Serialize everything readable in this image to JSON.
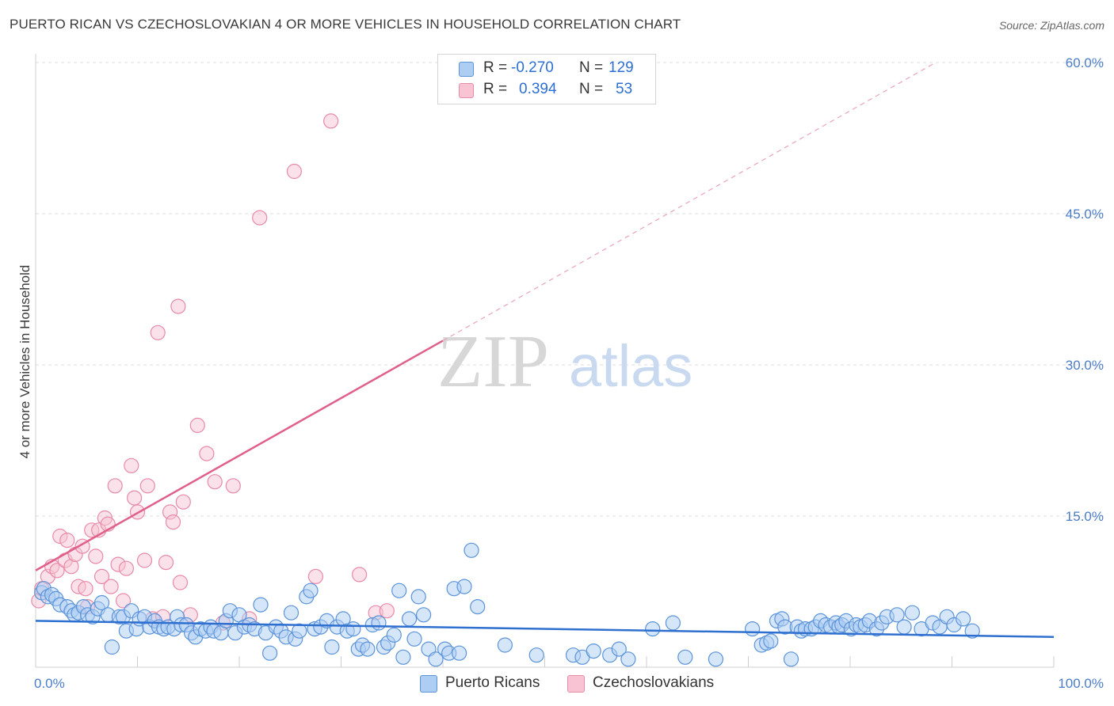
{
  "title": "PUERTO RICAN VS CZECHOSLOVAKIAN 4 OR MORE VEHICLES IN HOUSEHOLD CORRELATION CHART",
  "source": "Source: ZipAtlas.com",
  "watermark": {
    "zip": "ZIP",
    "atlas": "atlas"
  },
  "legend": {
    "r_label": "R =",
    "n_label": "N =",
    "series": [
      {
        "name": "Puerto Ricans",
        "r": "-0.270",
        "n": "129",
        "fill": "#aecdf3",
        "stroke": "#5b93d9"
      },
      {
        "name": "Czechoslovakians",
        "r": "0.394",
        "n": "53",
        "fill": "#f8c3d3",
        "stroke": "#e88aa8"
      }
    ]
  },
  "colors": {
    "blue_line": "#2e6fd0",
    "pink_line": "#e0608a",
    "tick_text": "#4a7cc9",
    "grid": "#dddddd"
  },
  "chart_data": {
    "type": "scatter",
    "title": "PUERTO RICAN VS CZECHOSLOVAKIAN 4 OR MORE VEHICLES IN HOUSEHOLD CORRELATION CHART",
    "xlabel": "",
    "ylabel": "4 or more Vehicles in Household",
    "xlim": [
      0,
      100
    ],
    "ylim": [
      0,
      60
    ],
    "x_tick_labels": [
      {
        "v": 0,
        "t": "0.0%"
      },
      {
        "v": 100,
        "t": "100.0%"
      }
    ],
    "y_tick_labels": [
      {
        "v": 15,
        "t": "15.0%"
      },
      {
        "v": 30,
        "t": "30.0%"
      },
      {
        "v": 45,
        "t": "45.0%"
      },
      {
        "v": 60,
        "t": "60.0%"
      }
    ],
    "series": [
      {
        "name": "Puerto Ricans",
        "trend": {
          "x0": 0,
          "y0": 4.6,
          "x1": 100,
          "y1": 3.0
        },
        "points": [
          [
            0.6,
            7.4
          ],
          [
            0.8,
            7.8
          ],
          [
            1.2,
            7.0
          ],
          [
            1.6,
            7.2
          ],
          [
            2.0,
            6.8
          ],
          [
            2.4,
            6.2
          ],
          [
            3.1,
            6.0
          ],
          [
            3.5,
            5.6
          ],
          [
            3.8,
            5.2
          ],
          [
            4.2,
            5.4
          ],
          [
            4.7,
            6.0
          ],
          [
            5.1,
            5.2
          ],
          [
            5.6,
            5.0
          ],
          [
            6.1,
            5.8
          ],
          [
            6.5,
            6.4
          ],
          [
            7.1,
            5.2
          ],
          [
            7.5,
            2.0
          ],
          [
            8.2,
            5.0
          ],
          [
            8.6,
            5.0
          ],
          [
            8.9,
            3.6
          ],
          [
            9.4,
            5.6
          ],
          [
            9.9,
            3.8
          ],
          [
            10.2,
            4.8
          ],
          [
            10.7,
            5.0
          ],
          [
            11.2,
            4.0
          ],
          [
            11.7,
            4.6
          ],
          [
            12.1,
            4.0
          ],
          [
            12.6,
            3.8
          ],
          [
            13.0,
            4.0
          ],
          [
            13.6,
            3.8
          ],
          [
            13.9,
            5.0
          ],
          [
            14.3,
            4.2
          ],
          [
            14.8,
            4.2
          ],
          [
            15.3,
            3.4
          ],
          [
            15.7,
            3.0
          ],
          [
            16.2,
            3.8
          ],
          [
            16.7,
            3.6
          ],
          [
            17.2,
            4.0
          ],
          [
            17.5,
            3.6
          ],
          [
            18.2,
            3.4
          ],
          [
            18.7,
            4.6
          ],
          [
            19.1,
            5.6
          ],
          [
            19.6,
            3.4
          ],
          [
            20.0,
            5.2
          ],
          [
            20.5,
            4.0
          ],
          [
            21.0,
            4.2
          ],
          [
            21.5,
            3.8
          ],
          [
            22.1,
            6.2
          ],
          [
            22.6,
            3.4
          ],
          [
            23.0,
            1.4
          ],
          [
            23.6,
            4.0
          ],
          [
            24.1,
            3.6
          ],
          [
            24.6,
            3.0
          ],
          [
            25.1,
            5.4
          ],
          [
            25.5,
            2.8
          ],
          [
            25.9,
            3.6
          ],
          [
            26.6,
            7.0
          ],
          [
            27.0,
            7.6
          ],
          [
            27.4,
            3.8
          ],
          [
            28.0,
            4.0
          ],
          [
            28.6,
            4.6
          ],
          [
            29.1,
            2.0
          ],
          [
            29.6,
            4.0
          ],
          [
            30.2,
            4.8
          ],
          [
            30.6,
            3.6
          ],
          [
            31.2,
            3.8
          ],
          [
            31.7,
            1.8
          ],
          [
            32.1,
            2.2
          ],
          [
            32.6,
            1.8
          ],
          [
            33.1,
            4.2
          ],
          [
            33.7,
            4.4
          ],
          [
            34.2,
            2.0
          ],
          [
            34.6,
            2.4
          ],
          [
            35.2,
            3.2
          ],
          [
            35.7,
            7.6
          ],
          [
            36.1,
            1.0
          ],
          [
            36.7,
            4.8
          ],
          [
            37.2,
            2.8
          ],
          [
            37.6,
            7.0
          ],
          [
            38.1,
            5.2
          ],
          [
            38.6,
            1.8
          ],
          [
            39.3,
            0.8
          ],
          [
            40.2,
            1.8
          ],
          [
            40.6,
            1.4
          ],
          [
            41.1,
            7.8
          ],
          [
            41.6,
            1.4
          ],
          [
            42.1,
            8.0
          ],
          [
            42.8,
            11.6
          ],
          [
            43.4,
            6.0
          ],
          [
            46.1,
            2.2
          ],
          [
            49.2,
            1.2
          ],
          [
            52.8,
            1.2
          ],
          [
            53.7,
            1.0
          ],
          [
            54.8,
            1.6
          ],
          [
            56.4,
            1.2
          ],
          [
            57.3,
            1.8
          ],
          [
            58.2,
            0.8
          ],
          [
            60.6,
            3.8
          ],
          [
            62.6,
            4.4
          ],
          [
            63.8,
            1.0
          ],
          [
            66.8,
            0.8
          ],
          [
            70.4,
            3.8
          ],
          [
            71.3,
            2.2
          ],
          [
            71.8,
            2.4
          ],
          [
            72.2,
            2.6
          ],
          [
            72.8,
            4.6
          ],
          [
            73.3,
            4.8
          ],
          [
            73.6,
            4.0
          ],
          [
            74.2,
            0.8
          ],
          [
            74.8,
            4.0
          ],
          [
            75.2,
            3.6
          ],
          [
            75.6,
            3.8
          ],
          [
            76.2,
            3.8
          ],
          [
            76.6,
            4.0
          ],
          [
            77.1,
            4.6
          ],
          [
            77.6,
            4.2
          ],
          [
            78.1,
            4.0
          ],
          [
            78.6,
            4.4
          ],
          [
            78.9,
            4.0
          ],
          [
            79.2,
            4.2
          ],
          [
            79.6,
            4.6
          ],
          [
            80.1,
            3.8
          ],
          [
            80.6,
            4.2
          ],
          [
            81.0,
            4.0
          ],
          [
            81.5,
            4.2
          ],
          [
            81.9,
            4.6
          ],
          [
            82.6,
            3.8
          ],
          [
            83.1,
            4.4
          ],
          [
            83.6,
            5.0
          ],
          [
            84.6,
            5.2
          ],
          [
            85.3,
            4.0
          ],
          [
            86.1,
            5.4
          ],
          [
            87.0,
            3.8
          ],
          [
            88.1,
            4.4
          ],
          [
            88.8,
            4.0
          ],
          [
            89.5,
            5.0
          ],
          [
            90.2,
            4.2
          ],
          [
            91.1,
            4.8
          ],
          [
            92.0,
            3.6
          ]
        ]
      },
      {
        "name": "Czechoslovakians",
        "trend": {
          "x0": 0,
          "y0": 9.6,
          "x1": 40,
          "y1": 32.4,
          "dash_to": {
            "x": 88.4,
            "y": 60
          }
        },
        "points": [
          [
            0.3,
            6.6
          ],
          [
            0.6,
            7.8
          ],
          [
            1.2,
            9.0
          ],
          [
            1.6,
            10.0
          ],
          [
            2.1,
            9.6
          ],
          [
            2.4,
            13.0
          ],
          [
            2.9,
            10.6
          ],
          [
            3.1,
            12.6
          ],
          [
            3.5,
            10.0
          ],
          [
            3.9,
            11.2
          ],
          [
            4.2,
            8.0
          ],
          [
            4.6,
            12.0
          ],
          [
            4.9,
            7.8
          ],
          [
            5.1,
            6.0
          ],
          [
            5.5,
            13.6
          ],
          [
            5.9,
            11.0
          ],
          [
            6.2,
            13.6
          ],
          [
            6.5,
            9.0
          ],
          [
            6.8,
            14.8
          ],
          [
            7.1,
            14.2
          ],
          [
            7.4,
            8.0
          ],
          [
            7.8,
            18.0
          ],
          [
            8.1,
            10.2
          ],
          [
            8.6,
            6.6
          ],
          [
            8.9,
            9.8
          ],
          [
            9.4,
            20.0
          ],
          [
            9.7,
            16.8
          ],
          [
            10.0,
            15.4
          ],
          [
            10.7,
            10.6
          ],
          [
            11.0,
            18.0
          ],
          [
            11.5,
            4.8
          ],
          [
            12.0,
            33.2
          ],
          [
            12.5,
            5.0
          ],
          [
            12.8,
            10.4
          ],
          [
            13.2,
            15.4
          ],
          [
            13.5,
            14.4
          ],
          [
            14.0,
            35.8
          ],
          [
            14.2,
            8.4
          ],
          [
            14.5,
            16.4
          ],
          [
            15.2,
            5.2
          ],
          [
            15.9,
            24.0
          ],
          [
            16.8,
            21.2
          ],
          [
            17.6,
            18.4
          ],
          [
            18.4,
            4.4
          ],
          [
            19.4,
            18.0
          ],
          [
            21.0,
            4.8
          ],
          [
            22.0,
            44.6
          ],
          [
            25.4,
            49.2
          ],
          [
            27.5,
            9.0
          ],
          [
            29.0,
            54.2
          ],
          [
            31.8,
            9.2
          ],
          [
            33.4,
            5.4
          ],
          [
            34.5,
            5.6
          ]
        ]
      }
    ]
  }
}
